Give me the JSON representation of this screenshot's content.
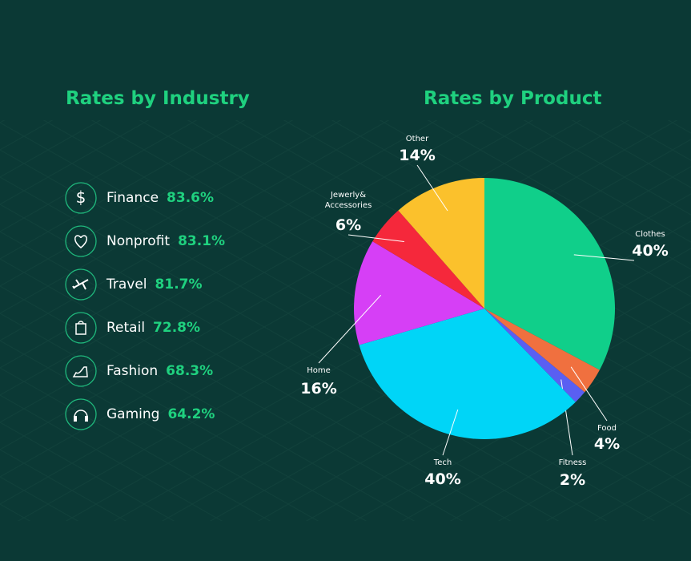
{
  "industry_rates": {
    "title": "Rates by Industry",
    "items": [
      {
        "label": "Finance",
        "rate": "83.6%"
      },
      {
        "label": "Nonprofit",
        "rate": "83.1%"
      },
      {
        "label": "Travel",
        "rate": "81.7%"
      },
      {
        "label": "Retail",
        "rate": "72.8%"
      },
      {
        "label": "Fashion",
        "rate": "68.3%"
      },
      {
        "label": "Gaming",
        "rate": "64.2%"
      }
    ]
  },
  "chart_data": {
    "type": "pie",
    "title": "Rates by Product",
    "categories": [
      "Clothes",
      "Food",
      "Fitness",
      "Tech",
      "Home",
      "Jewerly& Accessories",
      "Other"
    ],
    "values": [
      40,
      4,
      2,
      40,
      16,
      6,
      14
    ],
    "value_labels": [
      "40%",
      "4%",
      "2%",
      "40%",
      "16%",
      "6%",
      "14%"
    ],
    "colors": [
      "#10cf8a",
      "#f0703f",
      "#5a5ff2",
      "#00d5f7",
      "#d63ff6",
      "#f5283b",
      "#fbc12c"
    ]
  }
}
